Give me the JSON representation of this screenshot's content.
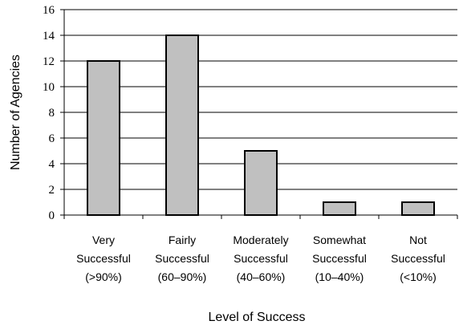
{
  "chart_data": {
    "type": "bar",
    "categories": [
      [
        "Very",
        "Successful",
        "(>90%)"
      ],
      [
        "Fairly",
        "Successful",
        "(60–90%)"
      ],
      [
        "Moderately",
        "Successful",
        "(40–60%)"
      ],
      [
        "Somewhat",
        "Successful",
        "(10–40%)"
      ],
      [
        "Not",
        "Successful",
        "(<10%)"
      ]
    ],
    "values": [
      12,
      14,
      5,
      1,
      1
    ],
    "xlabel": "Level of Success",
    "ylabel": "Number of Agencies",
    "ylim": [
      0,
      16
    ],
    "yticks": [
      "0",
      "2",
      "4",
      "6",
      "8",
      "10",
      "12",
      "14",
      "16"
    ],
    "grid": true,
    "bar_color": "#c0c0c0"
  }
}
